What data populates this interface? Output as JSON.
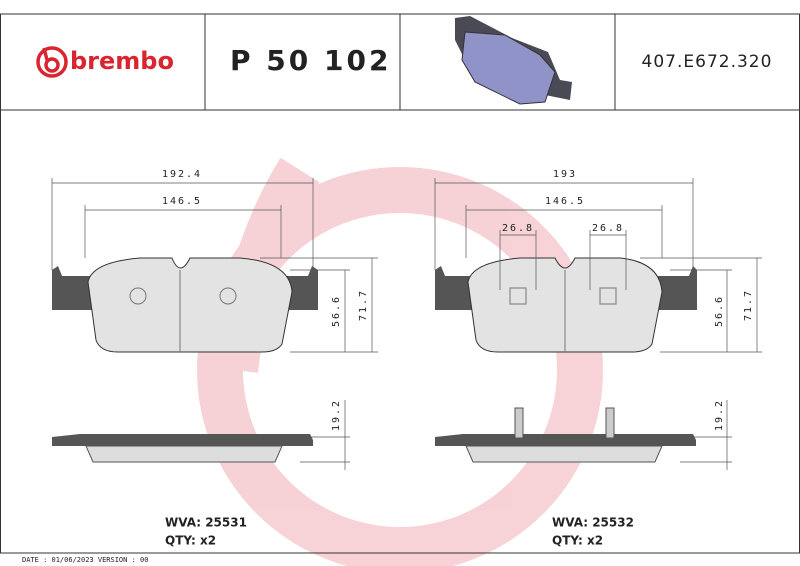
{
  "header": {
    "brand": "brembo",
    "part_number": "P 50 102",
    "reference": "407.E672.320"
  },
  "left": {
    "width": 192.4,
    "inner_width": 146.5,
    "height_inner": 56.6,
    "height": 71.7,
    "thickness": 19.2,
    "wva": "WVA: 25531",
    "qty": "QTY: x2"
  },
  "right": {
    "width": 193,
    "inner_width": 146.5,
    "slot_left": 26.8,
    "slot_right": 26.8,
    "height_inner": 56.6,
    "height": 71.7,
    "thickness": 19.2,
    "wva": "WVA: 25532",
    "qty": "QTY: x2"
  },
  "footer": "DATE : 01/06/2023 VERSION : 00"
}
